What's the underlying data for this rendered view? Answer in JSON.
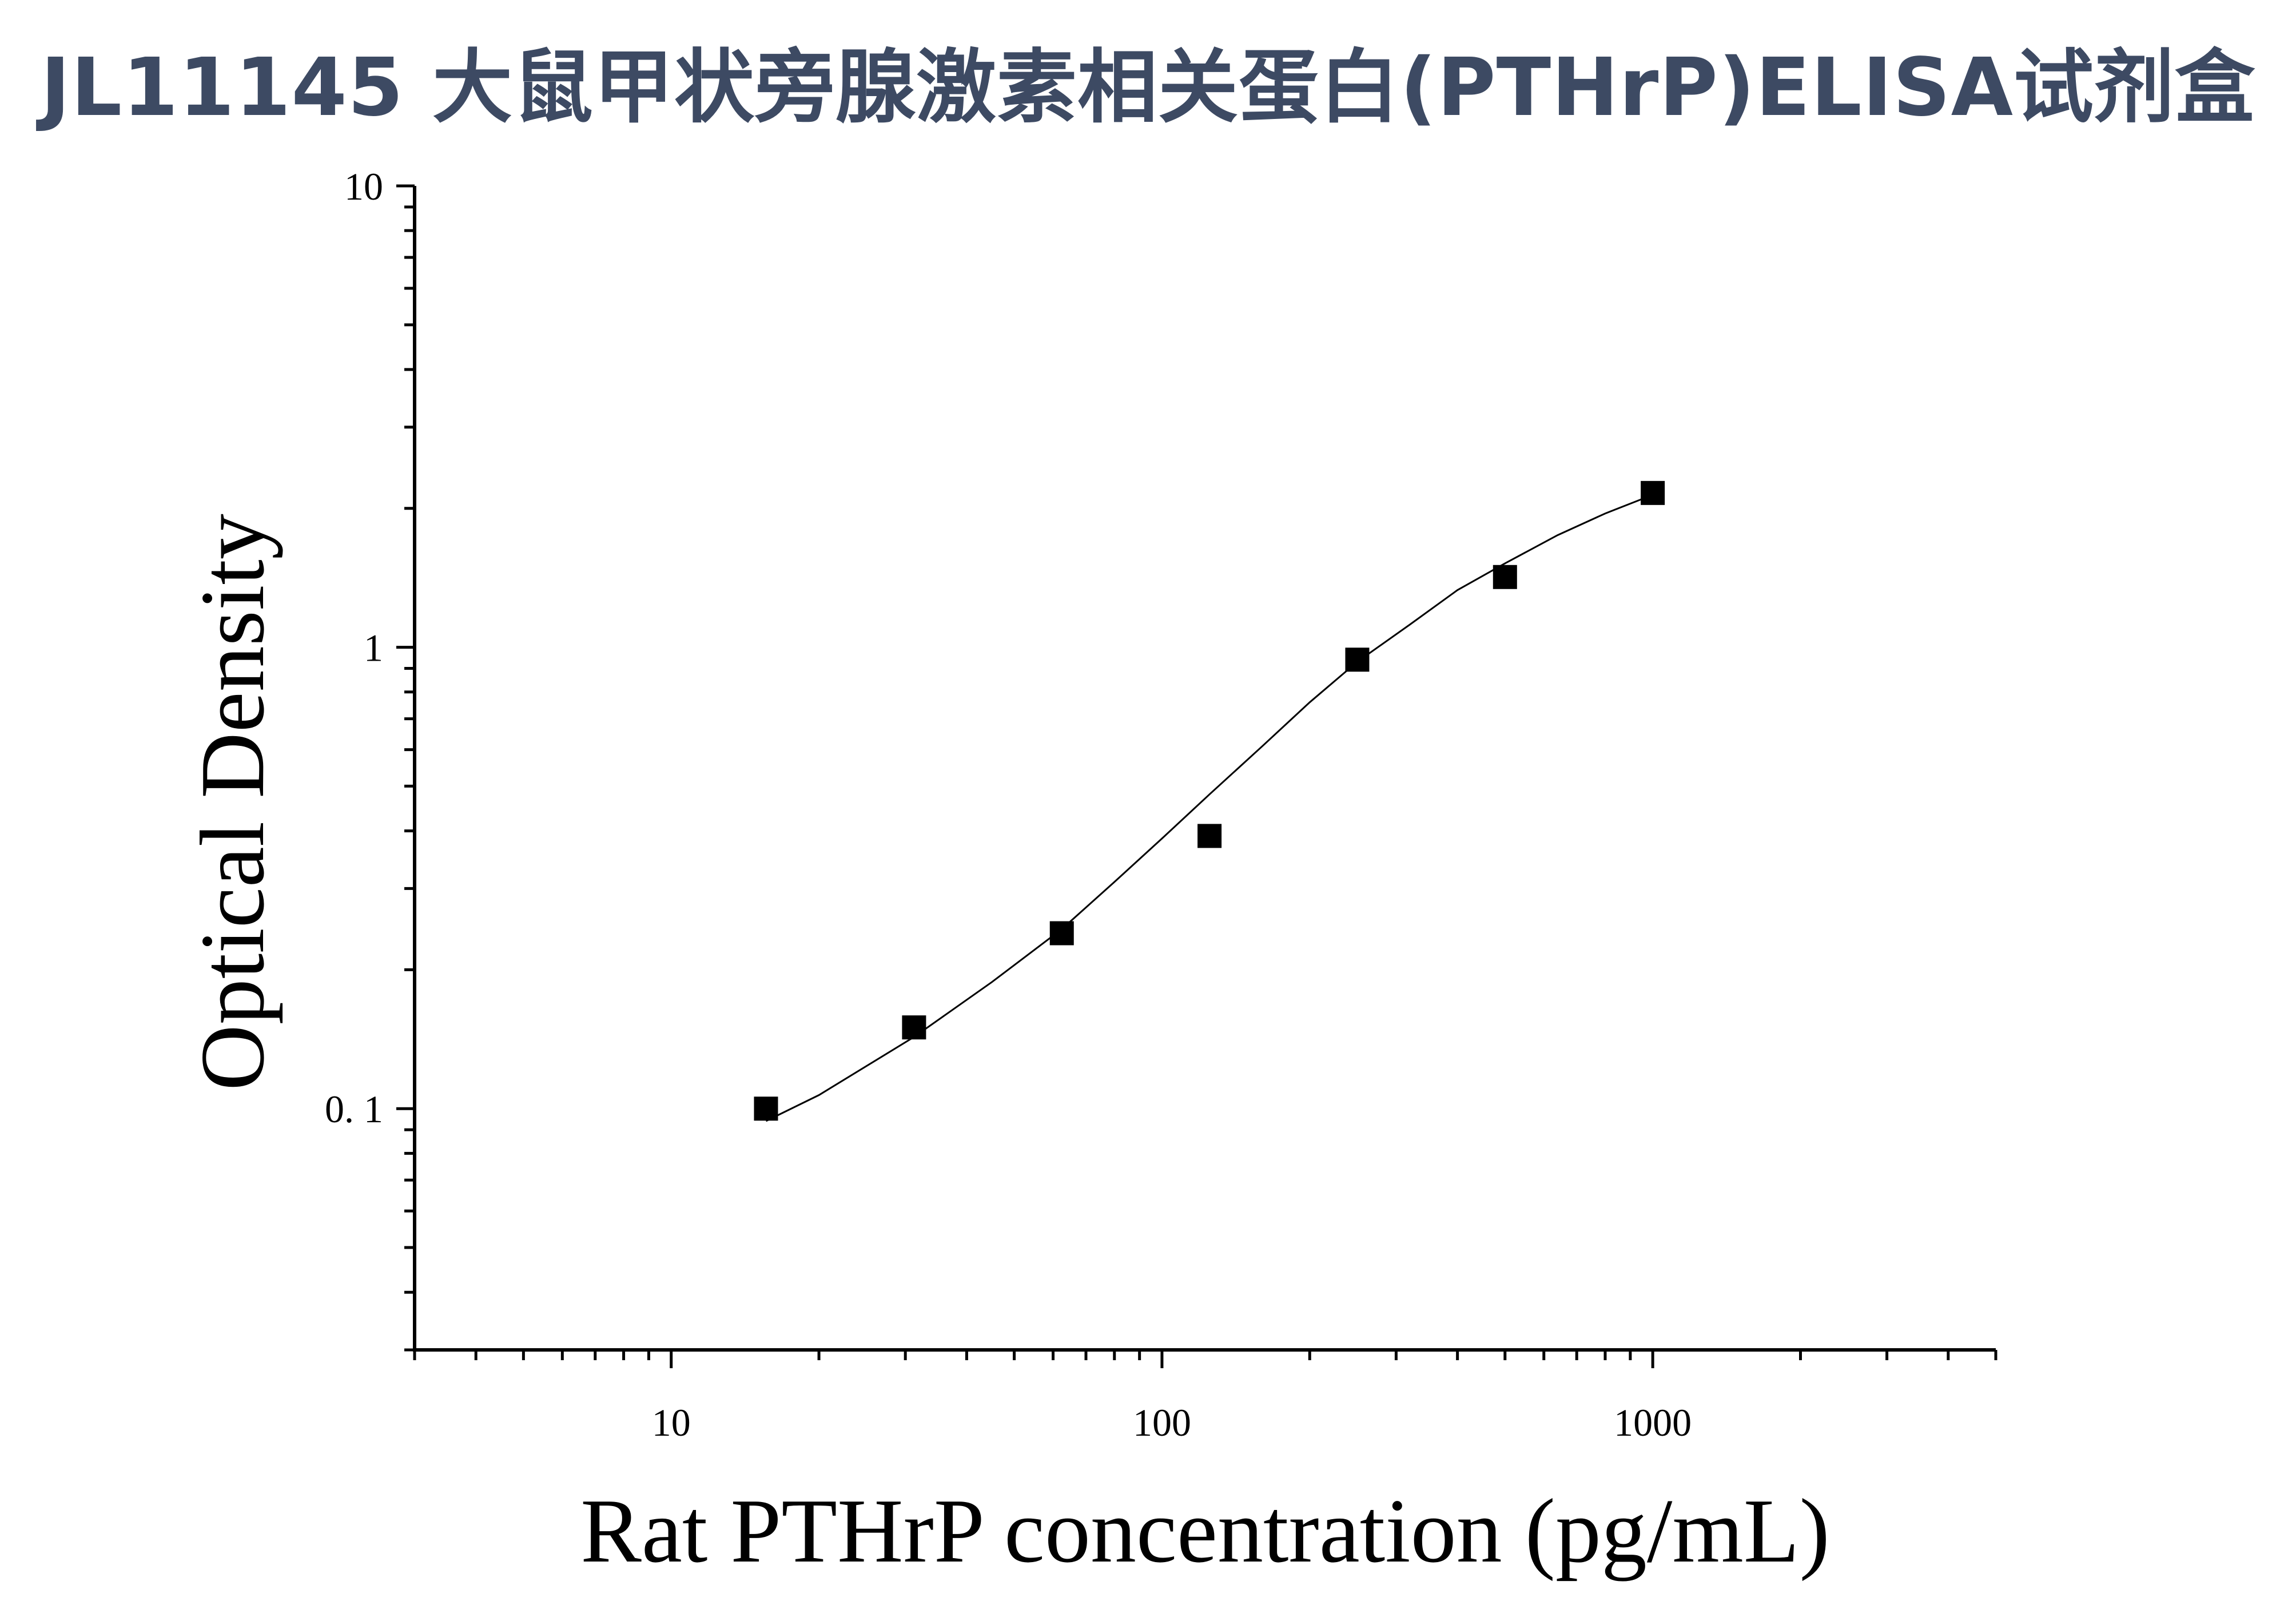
{
  "title": "JL11145 大鼠甲状旁腺激素相关蛋白(PTHrP)ELISA试剂盒",
  "chart_data": {
    "type": "scatter",
    "xlabel": "Rat PTHrP concentration (pg/mL)",
    "ylabel": "Optical Density",
    "xscale": "log",
    "yscale": "log",
    "xlim": [
      3,
      5000
    ],
    "ylim": [
      0.03,
      10
    ],
    "xticks": [
      {
        "value": 10,
        "label": "10"
      },
      {
        "value": 100,
        "label": "100"
      },
      {
        "value": 1000,
        "label": "1000"
      }
    ],
    "yticks": [
      {
        "value": 0.1,
        "label": "0. 1"
      },
      {
        "value": 1,
        "label": "1"
      },
      {
        "value": 10,
        "label": "10"
      }
    ],
    "series": [
      {
        "x": [
          15.6,
          31.25,
          62.5,
          125,
          250,
          500,
          1000
        ],
        "y": [
          0.1,
          0.15,
          0.24,
          0.39,
          0.94,
          1.42,
          2.16
        ],
        "marker": "square",
        "color": "#000000"
      }
    ],
    "fit_curve": {
      "type": "four-parameter logistic",
      "x": [
        15.6,
        20,
        31.25,
        45,
        62.5,
        80,
        100,
        125,
        160,
        200,
        250,
        320,
        400,
        500,
        640,
        800,
        1000
      ],
      "y": [
        0.094,
        0.107,
        0.143,
        0.188,
        0.245,
        0.31,
        0.385,
        0.48,
        0.61,
        0.76,
        0.93,
        1.12,
        1.33,
        1.52,
        1.75,
        1.95,
        2.14
      ]
    },
    "grid": false
  }
}
